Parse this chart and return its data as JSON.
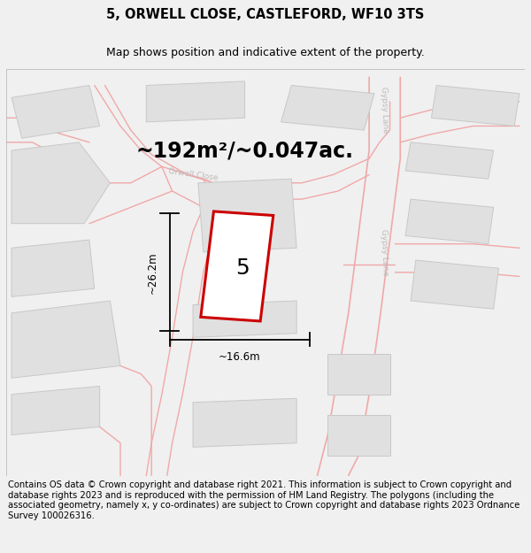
{
  "title": "5, ORWELL CLOSE, CASTLEFORD, WF10 3TS",
  "subtitle": "Map shows position and indicative extent of the property.",
  "area_text": "~192m²/~0.047ac.",
  "dim_width": "~16.6m",
  "dim_height": "~26.2m",
  "number_label": "5",
  "footer_text": "Contains OS data © Crown copyright and database right 2021. This information is subject to Crown copyright and database rights 2023 and is reproduced with the permission of HM Land Registry. The polygons (including the associated geometry, namely x, y co-ordinates) are subject to Crown copyright and database rights 2023 Ordnance Survey 100026316.",
  "bg_color": "#f0f0f0",
  "map_bg": "#f8f8f8",
  "road_color": "#f0a8a8",
  "building_fill": "#e0e0e0",
  "building_edge": "#c8c8c8",
  "plot_fill": "#ffffff",
  "plot_edge": "#cc0000",
  "street_label_color": "#c0b8b8",
  "title_fontsize": 10.5,
  "subtitle_fontsize": 9,
  "area_fontsize": 17,
  "number_fontsize": 18,
  "dim_fontsize": 8.5,
  "footer_fontsize": 7.2,
  "road_lw": 1.2
}
